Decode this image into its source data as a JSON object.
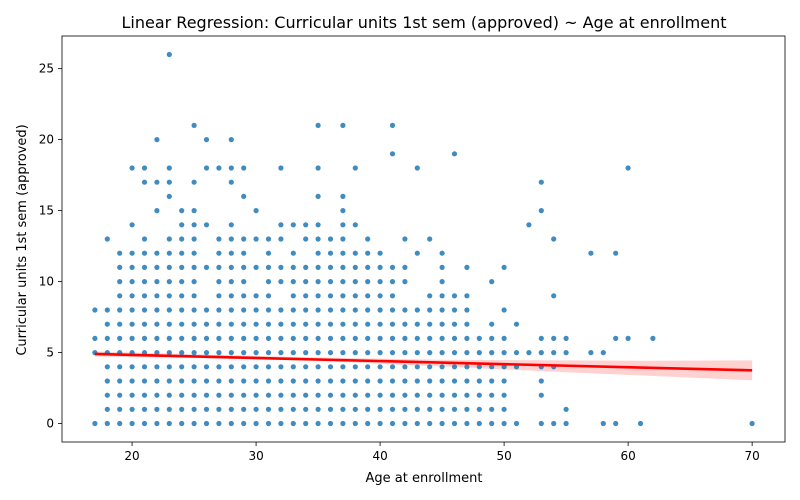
{
  "chart_data": {
    "type": "scatter",
    "title": "Linear Regression: Curricular units 1st sem (approved) ~ Age at enrollment",
    "xlabel": "Age at enrollment",
    "ylabel": "Curricular units 1st sem (approved)",
    "xlim": [
      14.35,
      72.65
    ],
    "ylim": [
      -1.3,
      27.3
    ],
    "xticks": [
      20,
      30,
      40,
      50,
      60,
      70
    ],
    "yticks": [
      0,
      5,
      10,
      15,
      20,
      25
    ],
    "grid": false,
    "legend": "none",
    "colors": {
      "points": "#1f77b4",
      "line": "#ff0000",
      "band": "#ff9999"
    },
    "points_by_x": [
      [
        17,
        [
          0,
          5,
          6,
          8
        ]
      ],
      [
        18,
        [
          0,
          1,
          2,
          3,
          4,
          5,
          6,
          7,
          8,
          13
        ]
      ],
      [
        19,
        [
          0,
          1,
          2,
          3,
          4,
          5,
          6,
          7,
          8,
          9,
          10,
          11,
          12
        ]
      ],
      [
        20,
        [
          0,
          1,
          2,
          3,
          4,
          5,
          6,
          7,
          8,
          9,
          10,
          11,
          12,
          14,
          18
        ]
      ],
      [
        21,
        [
          0,
          1,
          2,
          3,
          4,
          5,
          6,
          7,
          8,
          9,
          10,
          11,
          12,
          13,
          17,
          18
        ]
      ],
      [
        22,
        [
          0,
          1,
          2,
          3,
          4,
          5,
          6,
          7,
          8,
          9,
          10,
          11,
          12,
          15,
          17,
          20
        ]
      ],
      [
        23,
        [
          0,
          1,
          2,
          3,
          4,
          5,
          6,
          7,
          8,
          9,
          10,
          11,
          12,
          13,
          16,
          17,
          18,
          26
        ]
      ],
      [
        24,
        [
          0,
          1,
          2,
          3,
          4,
          5,
          6,
          7,
          8,
          9,
          10,
          11,
          12,
          13,
          14,
          15
        ]
      ],
      [
        25,
        [
          0,
          1,
          2,
          3,
          4,
          5,
          6,
          7,
          8,
          9,
          10,
          11,
          12,
          13,
          14,
          15,
          17,
          21
        ]
      ],
      [
        26,
        [
          0,
          1,
          2,
          3,
          4,
          5,
          6,
          7,
          8,
          11,
          14,
          18,
          20
        ]
      ],
      [
        27,
        [
          0,
          1,
          2,
          3,
          4,
          5,
          6,
          7,
          8,
          9,
          10,
          11,
          12,
          13,
          18
        ]
      ],
      [
        28,
        [
          0,
          1,
          2,
          3,
          4,
          5,
          6,
          7,
          8,
          9,
          10,
          11,
          12,
          13,
          14,
          17,
          18,
          20
        ]
      ],
      [
        29,
        [
          0,
          1,
          2,
          3,
          4,
          5,
          6,
          7,
          8,
          9,
          10,
          11,
          12,
          13,
          16,
          18
        ]
      ],
      [
        30,
        [
          0,
          1,
          2,
          3,
          4,
          5,
          6,
          7,
          8,
          9,
          11,
          13,
          15
        ]
      ],
      [
        31,
        [
          0,
          1,
          2,
          3,
          4,
          5,
          6,
          7,
          8,
          9,
          10,
          11,
          12,
          13
        ]
      ],
      [
        32,
        [
          0,
          1,
          2,
          3,
          4,
          5,
          6,
          7,
          8,
          10,
          11,
          13,
          14,
          18
        ]
      ],
      [
        33,
        [
          0,
          1,
          2,
          3,
          4,
          5,
          6,
          7,
          8,
          9,
          10,
          11,
          12,
          14
        ]
      ],
      [
        34,
        [
          0,
          1,
          2,
          3,
          4,
          5,
          6,
          7,
          8,
          9,
          10,
          11,
          13,
          14
        ]
      ],
      [
        35,
        [
          0,
          1,
          2,
          3,
          4,
          5,
          6,
          7,
          8,
          9,
          10,
          11,
          12,
          13,
          14,
          16,
          18,
          21
        ]
      ],
      [
        36,
        [
          0,
          1,
          2,
          3,
          4,
          5,
          6,
          7,
          8,
          9,
          10,
          11,
          12,
          13
        ]
      ],
      [
        37,
        [
          0,
          1,
          2,
          3,
          4,
          5,
          6,
          7,
          8,
          9,
          10,
          11,
          12,
          13,
          14,
          15,
          16,
          21
        ]
      ],
      [
        38,
        [
          0,
          1,
          2,
          3,
          4,
          5,
          6,
          7,
          8,
          9,
          10,
          11,
          12,
          14,
          18
        ]
      ],
      [
        39,
        [
          0,
          1,
          2,
          3,
          4,
          5,
          6,
          7,
          8,
          9,
          10,
          11,
          12,
          13
        ]
      ],
      [
        40,
        [
          0,
          1,
          2,
          3,
          4,
          5,
          6,
          7,
          8,
          9,
          10,
          11,
          12
        ]
      ],
      [
        41,
        [
          0,
          1,
          2,
          3,
          4,
          5,
          6,
          7,
          8,
          9,
          10,
          11,
          19,
          21
        ]
      ],
      [
        42,
        [
          0,
          1,
          2,
          3,
          4,
          5,
          6,
          7,
          8,
          10,
          11,
          13
        ]
      ],
      [
        43,
        [
          0,
          1,
          2,
          3,
          4,
          5,
          6,
          7,
          8,
          12,
          18
        ]
      ],
      [
        44,
        [
          0,
          1,
          2,
          3,
          4,
          5,
          6,
          7,
          8,
          9,
          13
        ]
      ],
      [
        45,
        [
          0,
          1,
          2,
          3,
          4,
          5,
          6,
          7,
          8,
          9,
          10,
          11,
          12
        ]
      ],
      [
        46,
        [
          0,
          1,
          2,
          3,
          4,
          5,
          6,
          7,
          8,
          9,
          19
        ]
      ],
      [
        47,
        [
          0,
          1,
          2,
          3,
          4,
          5,
          6,
          7,
          8,
          9,
          11
        ]
      ],
      [
        48,
        [
          0,
          1,
          2,
          3,
          4,
          5,
          6
        ]
      ],
      [
        49,
        [
          0,
          1,
          2,
          3,
          4,
          5,
          6,
          7,
          10
        ]
      ],
      [
        50,
        [
          0,
          1,
          2,
          3,
          4,
          5,
          6,
          8,
          11
        ]
      ],
      [
        51,
        [
          0,
          4,
          5,
          7
        ]
      ],
      [
        52,
        [
          5,
          14
        ]
      ],
      [
        53,
        [
          0,
          2,
          3,
          4,
          5,
          6,
          15,
          17
        ]
      ],
      [
        54,
        [
          0,
          4,
          5,
          6,
          9,
          13
        ]
      ],
      [
        55,
        [
          0,
          1,
          5,
          6
        ]
      ],
      [
        57,
        [
          5,
          12
        ]
      ],
      [
        58,
        [
          0,
          5
        ]
      ],
      [
        59,
        [
          0,
          6,
          12
        ]
      ],
      [
        60,
        [
          6,
          18
        ]
      ],
      [
        61,
        [
          0
        ]
      ],
      [
        62,
        [
          6
        ]
      ],
      [
        70,
        [
          0
        ]
      ]
    ],
    "regression_line": {
      "x": [
        17,
        70
      ],
      "y": [
        4.9,
        3.75
      ]
    },
    "confidence_band": {
      "x": [
        17,
        25,
        35,
        45,
        55,
        62,
        70
      ],
      "lower": [
        4.72,
        4.62,
        4.41,
        4.02,
        3.62,
        3.35,
        3.05
      ],
      "upper": [
        5.08,
        4.88,
        4.65,
        4.5,
        4.45,
        4.42,
        4.45
      ]
    }
  }
}
